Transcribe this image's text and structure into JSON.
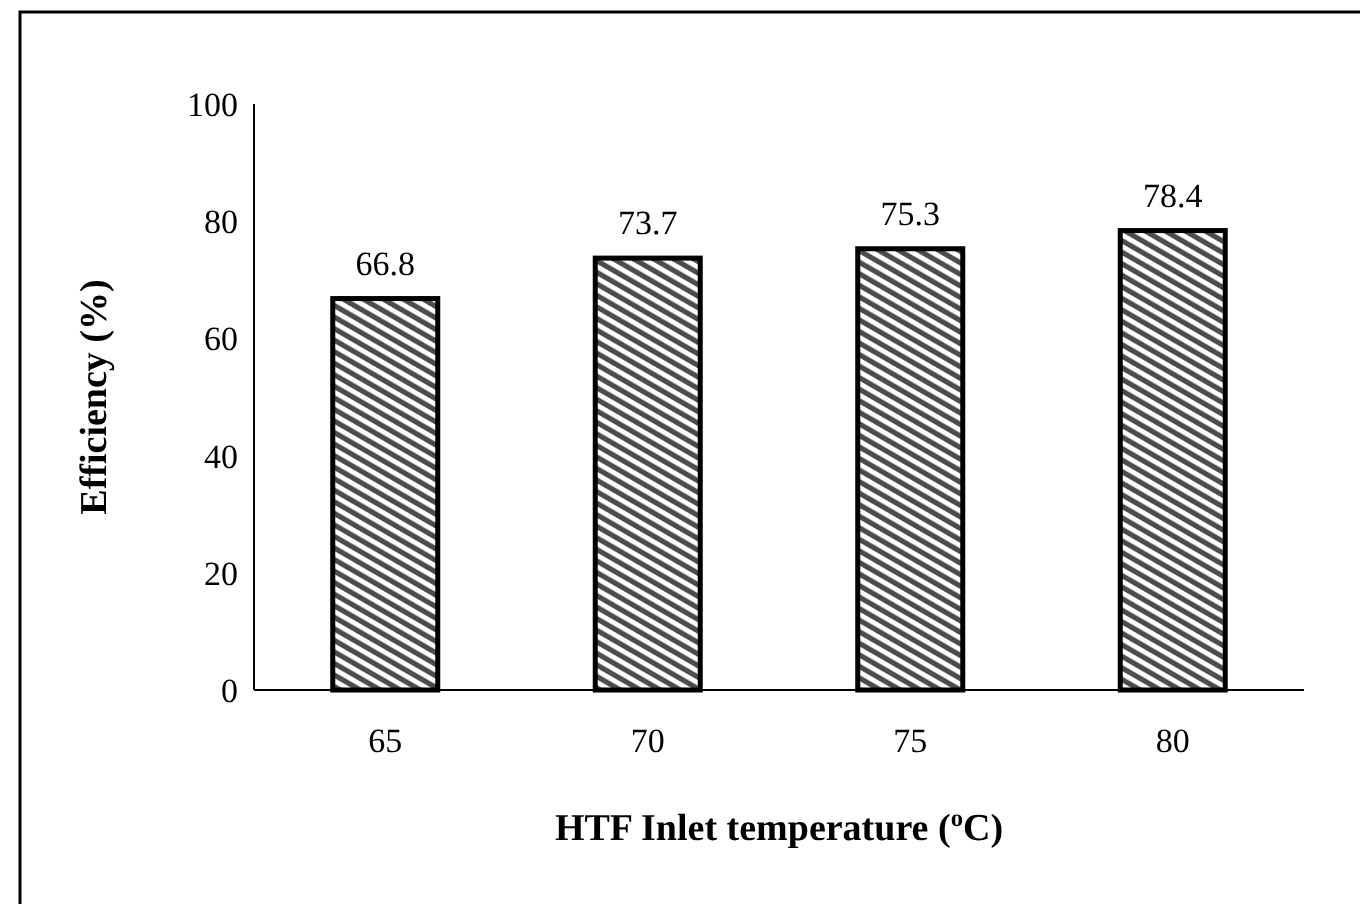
{
  "chart_data": {
    "type": "bar",
    "xlabel": "HTF Inlet temperature ($^{o}$C)",
    "ylabel": "Efficiency (%)",
    "categories": [
      "65",
      "70",
      "75",
      "80"
    ],
    "values": [
      66.8,
      73.7,
      75.3,
      78.4
    ],
    "color": "#000000",
    "ylim": [
      0,
      100
    ],
    "yticks": [
      0,
      20,
      40,
      60,
      80,
      100
    ],
    "grid": false,
    "data_labels": true
  }
}
